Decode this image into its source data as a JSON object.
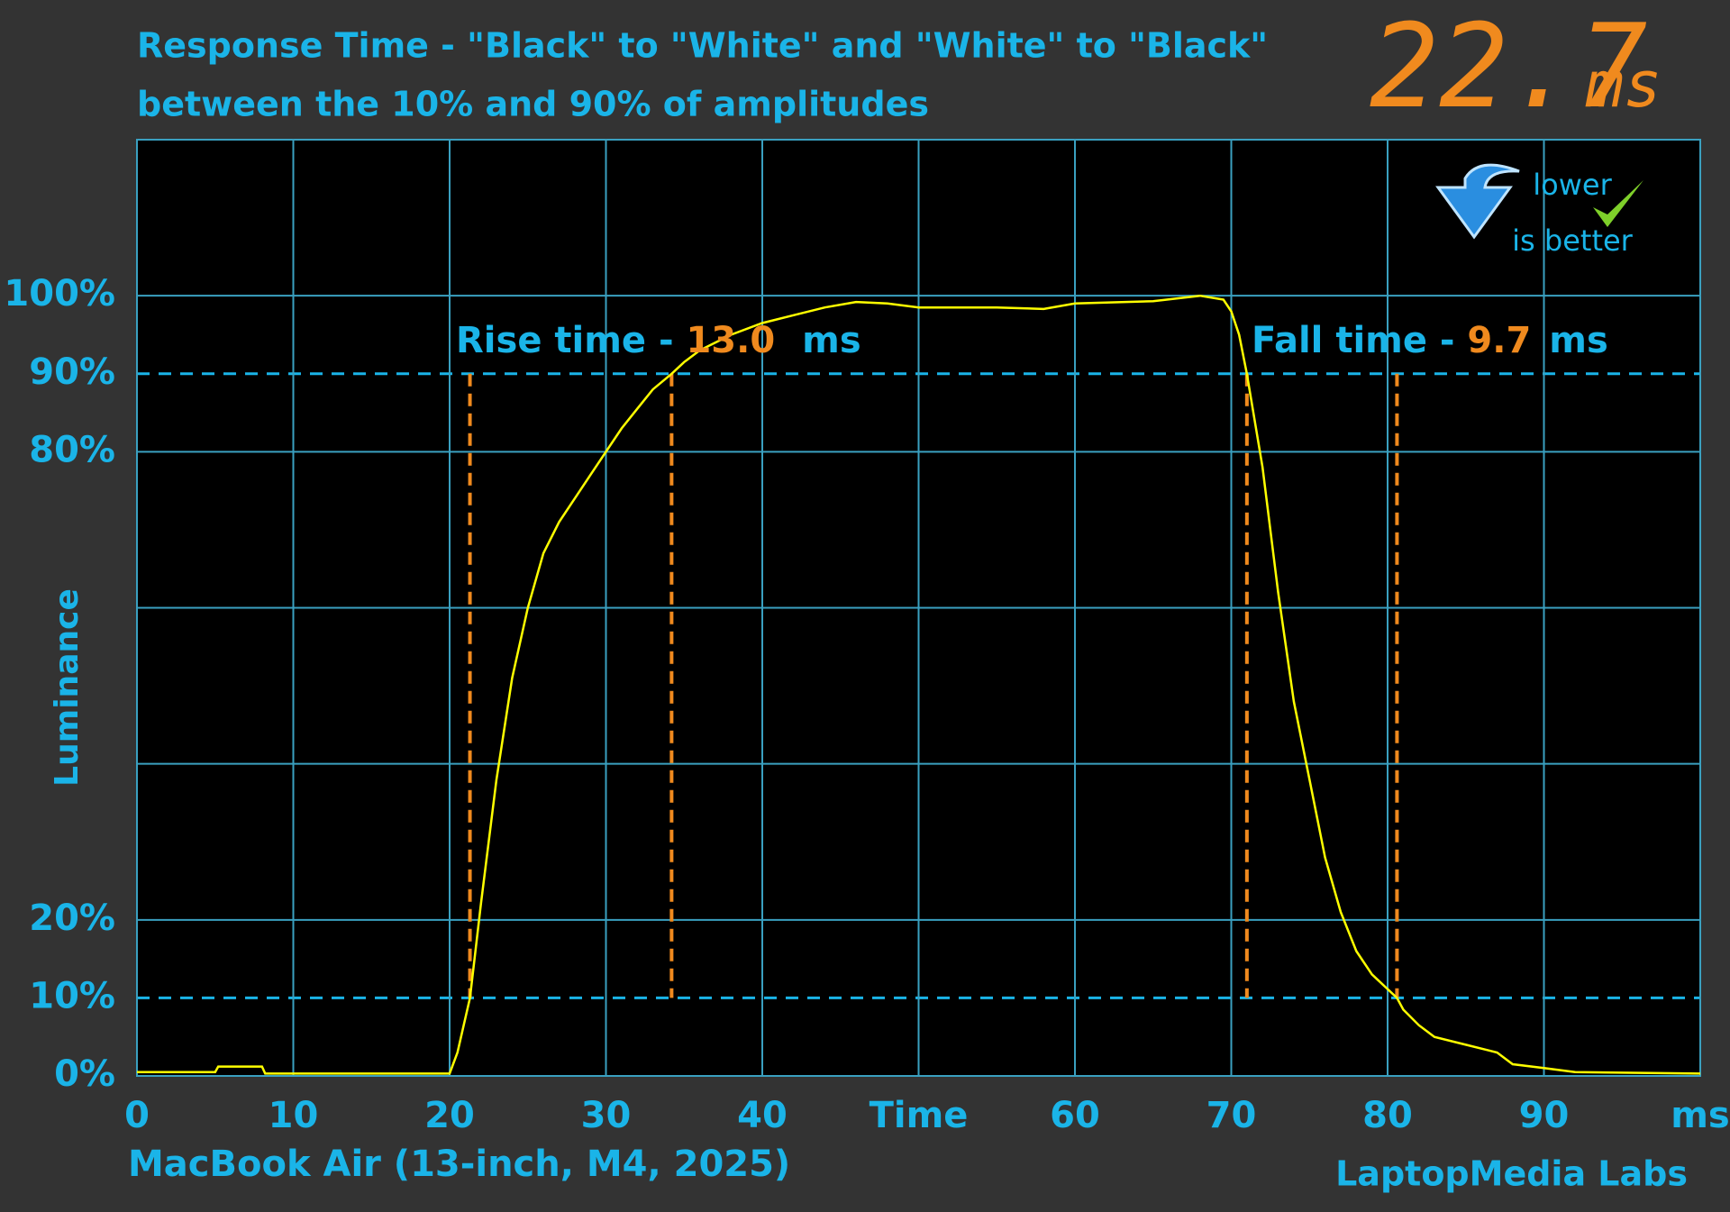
{
  "chart_data": {
    "type": "line",
    "title": "Response Time - \"Black\" to \"White\" and \"White\" to \"Black\"",
    "subtitle": "between the 10% and 90% of amplitudes",
    "headline_value": "22.7",
    "headline_unit": "ms",
    "y_label": "Luminance",
    "device": "MacBook Air (13-inch, M4, 2025)",
    "credit": "LaptopMedia Labs",
    "badge": [
      "lower",
      "is better"
    ],
    "rise": {
      "label": "Rise time - ",
      "value": "13.0",
      "unit": "ms"
    },
    "fall": {
      "label": "Fall time - ",
      "value": "9.7",
      "unit": "ms"
    },
    "xlim": [
      0,
      100
    ],
    "ylim": [
      0,
      120
    ],
    "xticks": [
      0,
      10,
      20,
      30,
      40,
      {
        "value": 50,
        "label": "Time"
      },
      60,
      70,
      80,
      90,
      {
        "value": 100,
        "label": "ms"
      }
    ],
    "yticks": [
      {
        "value": 0,
        "label": "0%"
      },
      {
        "value": 10,
        "label": "10%"
      },
      {
        "value": 20,
        "label": "20%"
      },
      {
        "value": 80,
        "label": "80%"
      },
      {
        "value": 90,
        "label": "90%"
      },
      {
        "value": 100,
        "label": "100%"
      }
    ],
    "grid_y": [
      0,
      20,
      40,
      60,
      80,
      100,
      120
    ],
    "dashed_y": [
      10,
      90
    ],
    "markers_x": [
      21.3,
      34.2,
      71.0,
      80.6
    ],
    "series": [
      {
        "name": "Luminance",
        "color": "#ffff00",
        "x": [
          0,
          5,
          5.2,
          8,
          8.2,
          20,
          20.5,
          21.3,
          22,
          23,
          24,
          25,
          26,
          27,
          28,
          29,
          30,
          31,
          32,
          33,
          34.2,
          35,
          36,
          38,
          40,
          42,
          44,
          46,
          48,
          50,
          55,
          58,
          60,
          65,
          68,
          69.5,
          70,
          70.5,
          71,
          72,
          73,
          74,
          75,
          76,
          77,
          78,
          79,
          80.6,
          81,
          82,
          83,
          85,
          87,
          88,
          90,
          92,
          100
        ],
        "values": [
          0.5,
          0.5,
          1.2,
          1.2,
          0.3,
          0.3,
          3,
          10,
          22,
          38,
          51,
          60,
          67,
          71,
          74,
          77,
          80,
          83,
          85.5,
          88,
          90,
          91.5,
          93,
          95,
          96.5,
          97.5,
          98.5,
          99.2,
          99,
          98.5,
          98.5,
          98.3,
          99,
          99.3,
          100,
          99.5,
          98,
          95,
          90,
          78,
          62,
          48,
          38,
          28,
          21,
          16,
          13,
          10,
          8.5,
          6.5,
          5,
          4,
          3,
          1.5,
          1,
          0.5,
          0.3
        ]
      }
    ]
  }
}
